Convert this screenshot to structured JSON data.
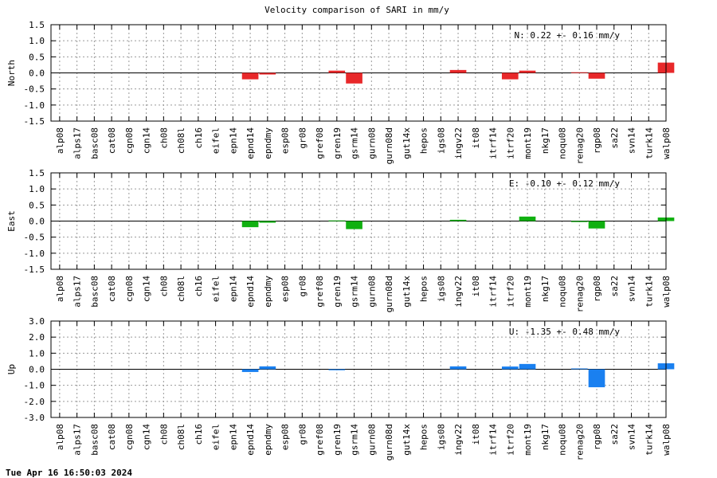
{
  "title": "Velocity comparison of SARI in mm/y",
  "footer_timestamp": "Tue Apr 16 16:50:03 2024",
  "chart_data": [
    {
      "type": "bar",
      "ylabel": "North",
      "annotation": "N:   0.22 +-  0.16 mm/y",
      "color": "#e8282a",
      "ylim": [
        -1.5,
        1.5
      ],
      "yticks": [
        "1.5",
        "1.0",
        "0.5",
        "0.0",
        "-0.5",
        "-1.0",
        "-1.5"
      ],
      "grid": true,
      "categories": [
        "alp08",
        "alps17",
        "basc08",
        "cat08",
        "cgn08",
        "cgn14",
        "ch08",
        "ch08l",
        "ch16",
        "eifel",
        "epn14",
        "epnd14",
        "epndmy",
        "esp08",
        "gr08",
        "gref08",
        "gren19",
        "gsrm14",
        "gurn08",
        "gurn08d",
        "gut14x",
        "hepos",
        "igs08",
        "ingv22",
        "it08",
        "itrf14",
        "itrf20",
        "mont19",
        "nkg17",
        "noqu08",
        "renag20",
        "rgp08",
        "sa22",
        "svn14",
        "turk14",
        "walp08"
      ],
      "values": [
        0,
        0,
        0,
        0,
        0,
        0,
        0,
        0,
        0,
        0,
        0,
        -0.2,
        -0.05,
        0,
        0,
        0,
        0.07,
        -0.33,
        0,
        0,
        0,
        0,
        0,
        0.09,
        0,
        0,
        -0.2,
        0.07,
        0,
        0,
        0.02,
        -0.18,
        0,
        0,
        0,
        0.32
      ]
    },
    {
      "type": "bar",
      "ylabel": "East",
      "annotation": "E:  -0.10 +-  0.12 mm/y",
      "color": "#10b010",
      "ylim": [
        -1.5,
        1.5
      ],
      "yticks": [
        "1.5",
        "1.0",
        "0.5",
        "0.0",
        "-0.5",
        "-1.0",
        "-1.5"
      ],
      "grid": true,
      "categories": [
        "alp08",
        "alps17",
        "basc08",
        "cat08",
        "cgn08",
        "cgn14",
        "ch08",
        "ch08l",
        "ch16",
        "eifel",
        "epn14",
        "epnd14",
        "epndmy",
        "esp08",
        "gr08",
        "gref08",
        "gren19",
        "gsrm14",
        "gurn08",
        "gurn08d",
        "gut14x",
        "hepos",
        "igs08",
        "ingv22",
        "it08",
        "itrf14",
        "itrf20",
        "mont19",
        "nkg17",
        "noqu08",
        "renag20",
        "rgp08",
        "sa22",
        "svn14",
        "turk14",
        "walp08"
      ],
      "values": [
        0,
        0,
        0,
        0,
        0,
        0,
        0,
        0,
        0,
        0,
        0,
        -0.19,
        -0.05,
        0,
        0,
        0,
        0.02,
        -0.25,
        0,
        0,
        0,
        0,
        0,
        0.04,
        0,
        0,
        0,
        0.14,
        0,
        0,
        -0.03,
        -0.23,
        0,
        0,
        0,
        0.11
      ]
    },
    {
      "type": "bar",
      "ylabel": "Up",
      "annotation": "U:  -1.35 +-  0.48 mm/y",
      "color": "#1a80f0",
      "ylim": [
        -3.0,
        3.0
      ],
      "yticks": [
        "3.0",
        "2.0",
        "1.0",
        "0.0",
        "-1.0",
        "-2.0",
        "-3.0"
      ],
      "grid": true,
      "categories": [
        "alp08",
        "alps17",
        "basc08",
        "cat08",
        "cgn08",
        "cgn14",
        "ch08",
        "ch08l",
        "ch16",
        "eifel",
        "epn14",
        "epnd14",
        "epndmy",
        "esp08",
        "gr08",
        "gref08",
        "gren19",
        "gsrm14",
        "gurn08",
        "gurn08d",
        "gut14x",
        "hepos",
        "igs08",
        "ingv22",
        "it08",
        "itrf14",
        "itrf20",
        "mont19",
        "nkg17",
        "noqu08",
        "renag20",
        "rgp08",
        "sa22",
        "svn14",
        "turk14",
        "walp08"
      ],
      "values": [
        0,
        0,
        0,
        0,
        0,
        0,
        0,
        0,
        0,
        0,
        0,
        -0.17,
        0.18,
        0,
        0,
        0,
        -0.06,
        0,
        0,
        0,
        0,
        0,
        0,
        0.18,
        0,
        0,
        0.17,
        0.33,
        0,
        0,
        0.05,
        -1.12,
        0,
        0,
        0,
        0.37
      ]
    }
  ]
}
